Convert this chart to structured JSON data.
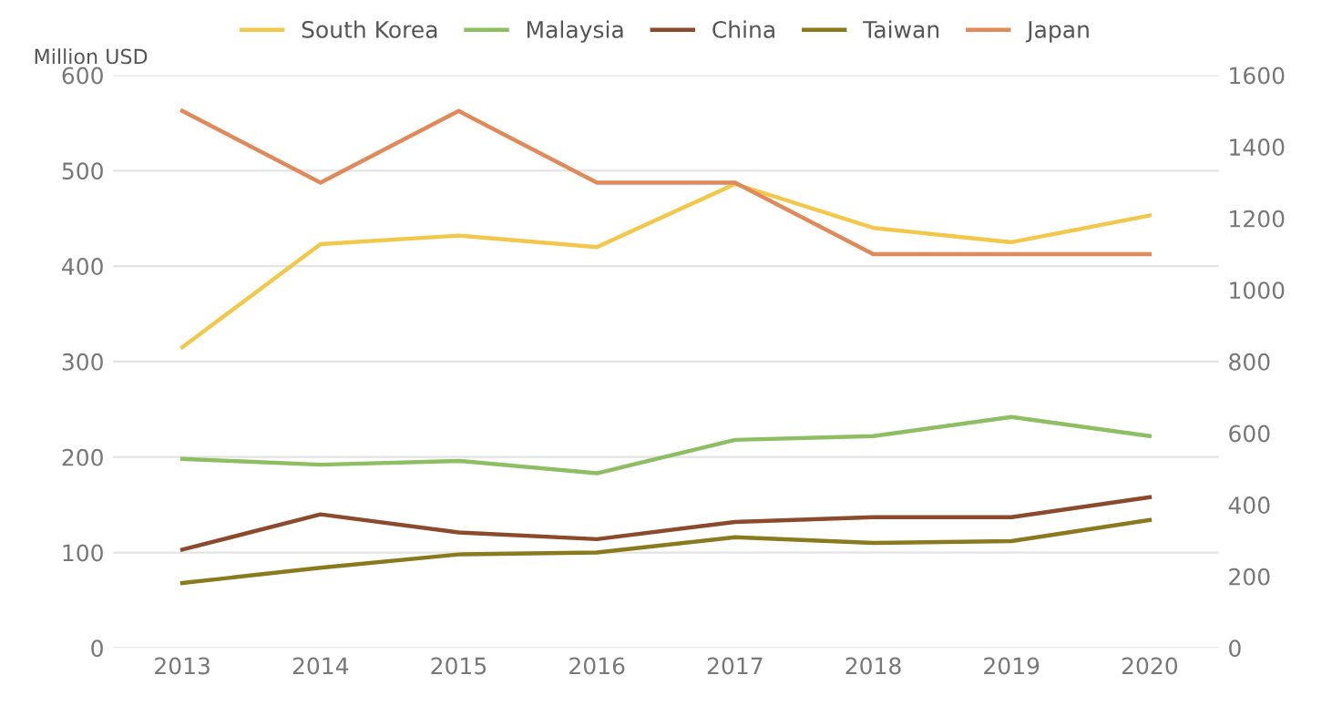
{
  "chart_data": {
    "type": "line",
    "ylabel": "Million USD",
    "categories": [
      "2013",
      "2014",
      "2015",
      "2016",
      "2017",
      "2018",
      "2019",
      "2020"
    ],
    "series": [
      {
        "name": "South Korea",
        "color": "#f2c84b",
        "values": [
          315,
          423,
          432,
          420,
          486,
          440,
          425,
          453
        ]
      },
      {
        "name": "Malaysia",
        "color": "#8dbf62",
        "values": [
          198,
          192,
          196,
          183,
          218,
          222,
          242,
          222
        ]
      },
      {
        "name": "China",
        "color": "#8b4a2b",
        "values": [
          103,
          140,
          121,
          114,
          132,
          137,
          137,
          158
        ]
      },
      {
        "name": "Taiwan",
        "color": "#8a7a1e",
        "values": [
          68,
          84,
          98,
          100,
          116,
          110,
          112,
          134
        ]
      },
      {
        "name": "Japan",
        "color": "#e0895a",
        "axis": "y2",
        "values": [
          1500,
          1300,
          1500,
          1300,
          1300,
          1100,
          1100,
          1100
        ]
      }
    ],
    "ylim": [
      0,
      600
    ],
    "yticks": [
      0,
      100,
      200,
      300,
      400,
      500,
      600
    ],
    "y2lim": [
      0,
      1600
    ],
    "y2ticks": [
      0,
      200,
      400,
      600,
      800,
      1000,
      1200,
      1400,
      1600
    ],
    "grid": "y",
    "legend": "top",
    "marker": "none",
    "line_style": "solid"
  }
}
